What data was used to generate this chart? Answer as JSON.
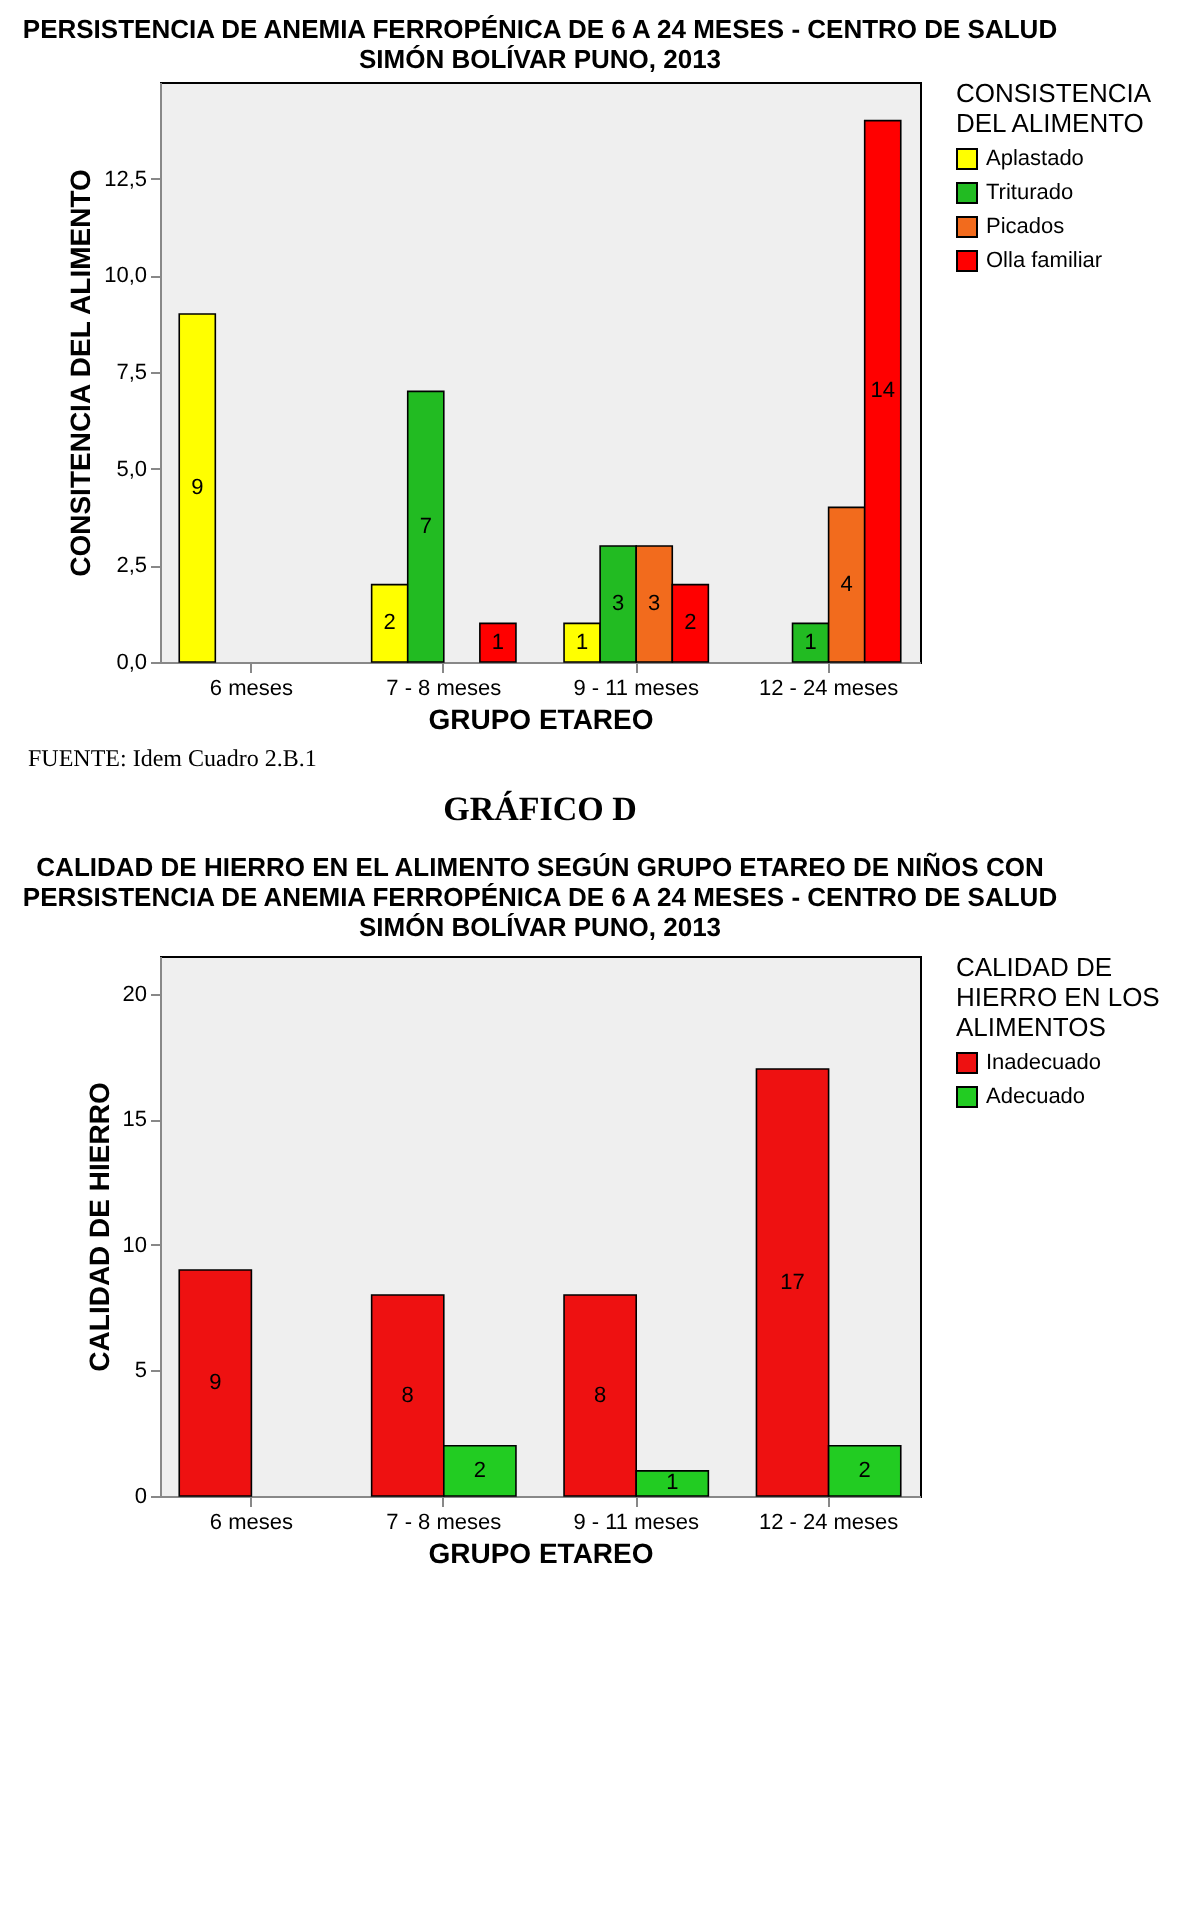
{
  "chart_data": [
    {
      "type": "bar",
      "title": "PERSISTENCIA DE ANEMIA FERROPÉNICA DE 6 A 24 MESES - CENTRO DE SALUD SIMÓN BOLÍVAR PUNO, 2013",
      "xlabel": "GRUPO ETAREO",
      "ylabel": "CONSITENCIA DEL ALIMENTO",
      "legend_title": "CONSISTENCIA DEL ALIMENTO",
      "categories": [
        "6 meses",
        "7 - 8 meses",
        "9 - 11 meses",
        "12 - 24 meses"
      ],
      "series": [
        {
          "name": "Aplastado",
          "color": "#ffff00",
          "values": [
            9,
            2,
            1,
            null
          ]
        },
        {
          "name": "Triturado",
          "color": "#22bb22",
          "values": [
            null,
            7,
            3,
            1
          ]
        },
        {
          "name": "Picados",
          "color": "#f26b1d",
          "values": [
            null,
            null,
            3,
            4
          ]
        },
        {
          "name": "Olla familiar",
          "color": "#ff0000",
          "values": [
            null,
            1,
            2,
            14
          ]
        }
      ],
      "ylim": [
        0,
        15
      ],
      "yticks": [
        {
          "value": 0,
          "label": "0,0"
        },
        {
          "value": 2.5,
          "label": "2,5"
        },
        {
          "value": 5,
          "label": "5,0"
        },
        {
          "value": 7.5,
          "label": "7,5"
        },
        {
          "value": 10,
          "label": "10,0"
        },
        {
          "value": 12.5,
          "label": "12,5"
        }
      ],
      "data_labels": true,
      "legend": "right",
      "annotations": [
        "FUENTE: Idem Cuadro 2.B.1"
      ]
    },
    {
      "type": "bar",
      "title": "GRÁFICO D",
      "subtitle": "CALIDAD DE HIERRO EN EL ALIMENTO SEGÚN GRUPO ETAREO DE NIÑOS CON PERSISTENCIA DE ANEMIA FERROPÉNICA DE 6 A 24 MESES - CENTRO DE SALUD SIMÓN BOLÍVAR PUNO, 2013",
      "xlabel": "GRUPO ETAREO",
      "ylabel": "CALIDAD DE HIERRO",
      "legend_title": "CALIDAD DE HIERRO EN LOS ALIMENTOS",
      "categories": [
        "6 meses",
        "7 - 8 meses",
        "9 - 11 meses",
        "12 - 24 meses"
      ],
      "series": [
        {
          "name": "Inadecuado",
          "color": "#ee1111",
          "values": [
            9,
            8,
            8,
            17
          ]
        },
        {
          "name": "Adecuado",
          "color": "#22cc22",
          "values": [
            null,
            2,
            1,
            2
          ]
        }
      ],
      "ylim": [
        0,
        21.5
      ],
      "yticks": [
        0,
        5,
        10,
        15,
        20
      ],
      "data_labels": true,
      "legend": "right"
    }
  ]
}
